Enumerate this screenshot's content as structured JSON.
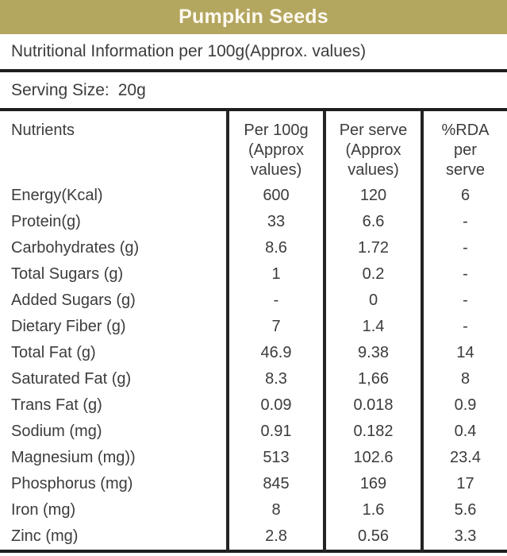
{
  "header": {
    "title": "Pumpkin Seeds",
    "bg_color": "#b3a65f",
    "text_color": "#fdf9ef"
  },
  "subheader": {
    "text": "Nutritional Information per 100g(Approx. values)"
  },
  "serving": {
    "label": "Serving Size:",
    "value": "20g"
  },
  "colors": {
    "accent_olive": "#b3a65f",
    "body_text": "#3c3c3c",
    "rule_lines": "#1e1e1e"
  },
  "table": {
    "column_headers": {
      "col1": "Nutrients",
      "col2": [
        "Per 100g",
        "(Approx",
        "values)"
      ],
      "col3": [
        "Per serve",
        "(Approx",
        "values)"
      ],
      "col4": [
        "%RDA",
        "per",
        "serve"
      ]
    },
    "rows": [
      {
        "nutrient": "Energy(Kcal)",
        "per100g": "600",
        "perserve": "120",
        "rda": "6"
      },
      {
        "nutrient": "Protein(g)",
        "per100g": "33",
        "perserve": "6.6",
        "rda": "-"
      },
      {
        "nutrient": "Carbohydrates (g)",
        "per100g": "8.6",
        "perserve": "1.72",
        "rda": "-"
      },
      {
        "nutrient": "Total Sugars (g)",
        "per100g": "1",
        "perserve": "0.2",
        "rda": "-"
      },
      {
        "nutrient": "Added Sugars (g)",
        "per100g": "-",
        "perserve": "0",
        "rda": "-"
      },
      {
        "nutrient": "Dietary Fiber (g)",
        "per100g": "7",
        "perserve": "1.4",
        "rda": "-"
      },
      {
        "nutrient": "Total Fat (g)",
        "per100g": "46.9",
        "perserve": "9.38",
        "rda": "14"
      },
      {
        "nutrient": "Saturated Fat (g)",
        "per100g": "8.3",
        "perserve": "1,66",
        "rda": "8"
      },
      {
        "nutrient": "Trans Fat (g)",
        "per100g": "0.09",
        "perserve": "0.018",
        "rda": "0.9"
      },
      {
        "nutrient": "Sodium (mg)",
        "per100g": "0.91",
        "perserve": "0.182",
        "rda": "0.4"
      },
      {
        "nutrient": "Magnesium (mg))",
        "per100g": "513",
        "perserve": "102.6",
        "rda": "23.4"
      },
      {
        "nutrient": "Phosphorus (mg)",
        "per100g": "845",
        "perserve": "169",
        "rda": "17"
      },
      {
        "nutrient": "Iron (mg)",
        "per100g": "8",
        "perserve": "1.6",
        "rda": "5.6"
      },
      {
        "nutrient": "Zinc (mg)",
        "per100g": "2.8",
        "perserve": "0.56",
        "rda": "3.3"
      }
    ]
  }
}
